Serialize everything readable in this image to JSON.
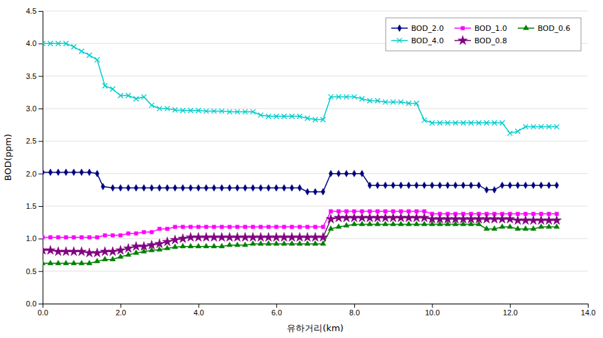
{
  "chart_data": {
    "type": "line",
    "xlabel": "유하거리(km)",
    "ylabel": "BOD(ppm)",
    "xlim": [
      0.0,
      14.0
    ],
    "ylim": [
      0.0,
      4.5
    ],
    "xticks": [
      {
        "value": 0.0,
        "label": "0.0"
      },
      {
        "value": 2.0,
        "label": "2.0"
      },
      {
        "value": 4.0,
        "label": "4.0"
      },
      {
        "value": 6.0,
        "label": "6.0"
      },
      {
        "value": 8.0,
        "label": "8.0"
      },
      {
        "value": 10.0,
        "label": "10.0"
      },
      {
        "value": 12.0,
        "label": "12.0"
      },
      {
        "value": 14.0,
        "label": "14.0"
      }
    ],
    "yticks": [
      {
        "value": 0.0,
        "label": "0.0"
      },
      0.5,
      {
        "value": 1.0,
        "label": "1.0"
      },
      1.5,
      {
        "value": 2.0,
        "label": "2.0"
      },
      2.5,
      {
        "value": 3.0,
        "label": "3.0"
      },
      3.5,
      {
        "value": 4.0,
        "label": "4.0"
      },
      4.5
    ],
    "grid": "y",
    "legend": "upper right",
    "series": [
      {
        "name": "BOD_2.0",
        "color": "#000080",
        "marker": "diamond",
        "x": [
          0.0,
          0.2,
          0.4,
          0.6,
          0.8,
          1.0,
          1.2,
          1.4,
          1.55,
          1.8,
          2.0,
          2.2,
          2.4,
          2.6,
          2.8,
          3.0,
          3.2,
          3.4,
          3.6,
          3.8,
          4.0,
          4.2,
          4.4,
          4.6,
          4.8,
          5.0,
          5.2,
          5.4,
          5.6,
          5.8,
          6.0,
          6.2,
          6.4,
          6.6,
          6.8,
          7.0,
          7.2,
          7.4,
          7.6,
          7.8,
          8.0,
          8.2,
          8.4,
          8.6,
          8.8,
          9.0,
          9.2,
          9.4,
          9.6,
          9.8,
          10.0,
          10.2,
          10.4,
          10.6,
          10.8,
          11.0,
          11.2,
          11.4,
          11.6,
          11.8,
          12.0,
          12.2,
          12.4,
          12.6,
          12.8,
          13.0,
          13.2
        ],
        "values": [
          2.02,
          2.02,
          2.02,
          2.02,
          2.02,
          2.02,
          2.02,
          2.0,
          1.8,
          1.78,
          1.78,
          1.78,
          1.78,
          1.78,
          1.78,
          1.78,
          1.78,
          1.78,
          1.78,
          1.78,
          1.78,
          1.78,
          1.78,
          1.78,
          1.78,
          1.78,
          1.78,
          1.78,
          1.78,
          1.78,
          1.78,
          1.78,
          1.78,
          1.78,
          1.72,
          1.72,
          1.72,
          2.0,
          2.0,
          2.0,
          2.0,
          2.0,
          1.82,
          1.82,
          1.82,
          1.82,
          1.82,
          1.82,
          1.82,
          1.82,
          1.82,
          1.82,
          1.82,
          1.82,
          1.82,
          1.82,
          1.82,
          1.75,
          1.75,
          1.82,
          1.82,
          1.82,
          1.82,
          1.82,
          1.82,
          1.82,
          1.82
        ]
      },
      {
        "name": "BOD_1.0",
        "color": "#FF00FF",
        "marker": "square",
        "x": [
          0.0,
          0.2,
          0.4,
          0.6,
          0.8,
          1.0,
          1.2,
          1.4,
          1.6,
          1.8,
          2.0,
          2.2,
          2.4,
          2.6,
          2.8,
          3.0,
          3.2,
          3.4,
          3.6,
          3.8,
          4.0,
          4.2,
          4.4,
          4.6,
          4.8,
          5.0,
          5.2,
          5.4,
          5.6,
          5.8,
          6.0,
          6.2,
          6.4,
          6.6,
          6.8,
          7.0,
          7.2,
          7.4,
          7.6,
          7.8,
          8.0,
          8.2,
          8.4,
          8.6,
          8.8,
          9.0,
          9.2,
          9.4,
          9.6,
          9.8,
          10.0,
          10.2,
          10.4,
          10.6,
          10.8,
          11.0,
          11.2,
          11.4,
          11.6,
          11.8,
          12.0,
          12.2,
          12.4,
          12.6,
          12.8,
          13.0,
          13.2
        ],
        "values": [
          1.02,
          1.02,
          1.02,
          1.02,
          1.02,
          1.02,
          1.02,
          1.02,
          1.05,
          1.05,
          1.05,
          1.08,
          1.08,
          1.1,
          1.1,
          1.15,
          1.15,
          1.18,
          1.18,
          1.18,
          1.18,
          1.18,
          1.18,
          1.18,
          1.18,
          1.18,
          1.18,
          1.18,
          1.18,
          1.18,
          1.18,
          1.18,
          1.18,
          1.18,
          1.18,
          1.18,
          1.18,
          1.42,
          1.42,
          1.42,
          1.42,
          1.42,
          1.42,
          1.42,
          1.42,
          1.42,
          1.42,
          1.42,
          1.42,
          1.42,
          1.38,
          1.38,
          1.38,
          1.38,
          1.38,
          1.38,
          1.38,
          1.38,
          1.38,
          1.38,
          1.38,
          1.38,
          1.38,
          1.38,
          1.38,
          1.38,
          1.38
        ]
      },
      {
        "name": "BOD_0.6",
        "color": "#008000",
        "marker": "triangle",
        "x": [
          0.0,
          0.2,
          0.4,
          0.6,
          0.8,
          1.0,
          1.2,
          1.4,
          1.6,
          1.8,
          2.0,
          2.2,
          2.4,
          2.6,
          2.8,
          3.0,
          3.2,
          3.4,
          3.6,
          3.8,
          4.0,
          4.2,
          4.4,
          4.6,
          4.8,
          5.0,
          5.2,
          5.4,
          5.6,
          5.8,
          6.0,
          6.2,
          6.4,
          6.6,
          6.8,
          7.0,
          7.2,
          7.4,
          7.6,
          7.8,
          8.0,
          8.2,
          8.4,
          8.6,
          8.8,
          9.0,
          9.2,
          9.4,
          9.6,
          9.8,
          10.0,
          10.2,
          10.4,
          10.6,
          10.8,
          11.0,
          11.2,
          11.4,
          11.6,
          11.8,
          12.0,
          12.2,
          12.4,
          12.6,
          12.8,
          13.0,
          13.2
        ],
        "values": [
          0.62,
          0.62,
          0.62,
          0.62,
          0.62,
          0.62,
          0.62,
          0.65,
          0.68,
          0.68,
          0.72,
          0.75,
          0.78,
          0.8,
          0.82,
          0.83,
          0.85,
          0.87,
          0.88,
          0.88,
          0.88,
          0.88,
          0.88,
          0.88,
          0.9,
          0.9,
          0.9,
          0.92,
          0.92,
          0.92,
          0.92,
          0.92,
          0.92,
          0.92,
          0.92,
          0.92,
          0.92,
          1.15,
          1.18,
          1.2,
          1.22,
          1.22,
          1.22,
          1.22,
          1.22,
          1.22,
          1.22,
          1.22,
          1.22,
          1.22,
          1.22,
          1.22,
          1.22,
          1.22,
          1.22,
          1.22,
          1.22,
          1.15,
          1.15,
          1.18,
          1.18,
          1.15,
          1.15,
          1.15,
          1.18,
          1.18,
          1.18
        ]
      },
      {
        "name": "BOD_4.0",
        "color": "#00CCCC",
        "marker": "x",
        "x": [
          0.0,
          0.2,
          0.4,
          0.6,
          0.8,
          1.0,
          1.2,
          1.4,
          1.6,
          1.8,
          2.0,
          2.2,
          2.4,
          2.6,
          2.8,
          3.0,
          3.2,
          3.4,
          3.6,
          3.8,
          4.0,
          4.2,
          4.4,
          4.6,
          4.8,
          5.0,
          5.2,
          5.4,
          5.6,
          5.8,
          6.0,
          6.2,
          6.4,
          6.6,
          6.8,
          7.0,
          7.2,
          7.4,
          7.6,
          7.8,
          8.0,
          8.2,
          8.4,
          8.6,
          8.8,
          9.0,
          9.2,
          9.4,
          9.6,
          9.8,
          10.0,
          10.2,
          10.4,
          10.6,
          10.8,
          11.0,
          11.2,
          11.4,
          11.6,
          11.8,
          12.0,
          12.2,
          12.4,
          12.6,
          12.8,
          13.0,
          13.2
        ],
        "values": [
          4.0,
          4.0,
          4.0,
          4.0,
          3.95,
          3.88,
          3.82,
          3.75,
          3.35,
          3.3,
          3.2,
          3.2,
          3.15,
          3.18,
          3.05,
          3.0,
          3.0,
          2.98,
          2.97,
          2.97,
          2.97,
          2.96,
          2.96,
          2.96,
          2.95,
          2.95,
          2.95,
          2.95,
          2.9,
          2.88,
          2.88,
          2.88,
          2.88,
          2.88,
          2.85,
          2.83,
          2.83,
          3.18,
          3.18,
          3.18,
          3.18,
          3.15,
          3.12,
          3.12,
          3.1,
          3.1,
          3.1,
          3.08,
          3.08,
          2.82,
          2.78,
          2.78,
          2.78,
          2.78,
          2.78,
          2.78,
          2.78,
          2.78,
          2.78,
          2.78,
          2.62,
          2.65,
          2.72,
          2.72,
          2.72,
          2.72,
          2.72
        ]
      },
      {
        "name": "BOD_0.8",
        "color": "#800080",
        "marker": "star",
        "x": [
          0.0,
          0.2,
          0.4,
          0.6,
          0.8,
          1.0,
          1.2,
          1.4,
          1.6,
          1.8,
          2.0,
          2.2,
          2.4,
          2.6,
          2.8,
          3.0,
          3.2,
          3.4,
          3.6,
          3.8,
          4.0,
          4.2,
          4.4,
          4.6,
          4.8,
          5.0,
          5.2,
          5.4,
          5.6,
          5.8,
          6.0,
          6.2,
          6.4,
          6.6,
          6.8,
          7.0,
          7.2,
          7.4,
          7.6,
          7.8,
          8.0,
          8.2,
          8.4,
          8.6,
          8.8,
          9.0,
          9.2,
          9.4,
          9.6,
          9.8,
          10.0,
          10.2,
          10.4,
          10.6,
          10.8,
          11.0,
          11.2,
          11.4,
          11.6,
          11.8,
          12.0,
          12.2,
          12.4,
          12.6,
          12.8,
          13.0,
          13.2
        ],
        "values": [
          0.82,
          0.82,
          0.8,
          0.8,
          0.8,
          0.8,
          0.78,
          0.78,
          0.8,
          0.8,
          0.82,
          0.85,
          0.88,
          0.88,
          0.9,
          0.92,
          0.95,
          0.98,
          1.0,
          1.02,
          1.02,
          1.02,
          1.02,
          1.02,
          1.02,
          1.02,
          1.02,
          1.02,
          1.02,
          1.02,
          1.02,
          1.02,
          1.02,
          1.02,
          1.02,
          1.02,
          1.02,
          1.3,
          1.32,
          1.32,
          1.32,
          1.32,
          1.32,
          1.32,
          1.32,
          1.32,
          1.32,
          1.32,
          1.32,
          1.32,
          1.3,
          1.3,
          1.3,
          1.3,
          1.3,
          1.3,
          1.3,
          1.3,
          1.3,
          1.3,
          1.3,
          1.28,
          1.28,
          1.28,
          1.28,
          1.28,
          1.28
        ]
      }
    ]
  }
}
